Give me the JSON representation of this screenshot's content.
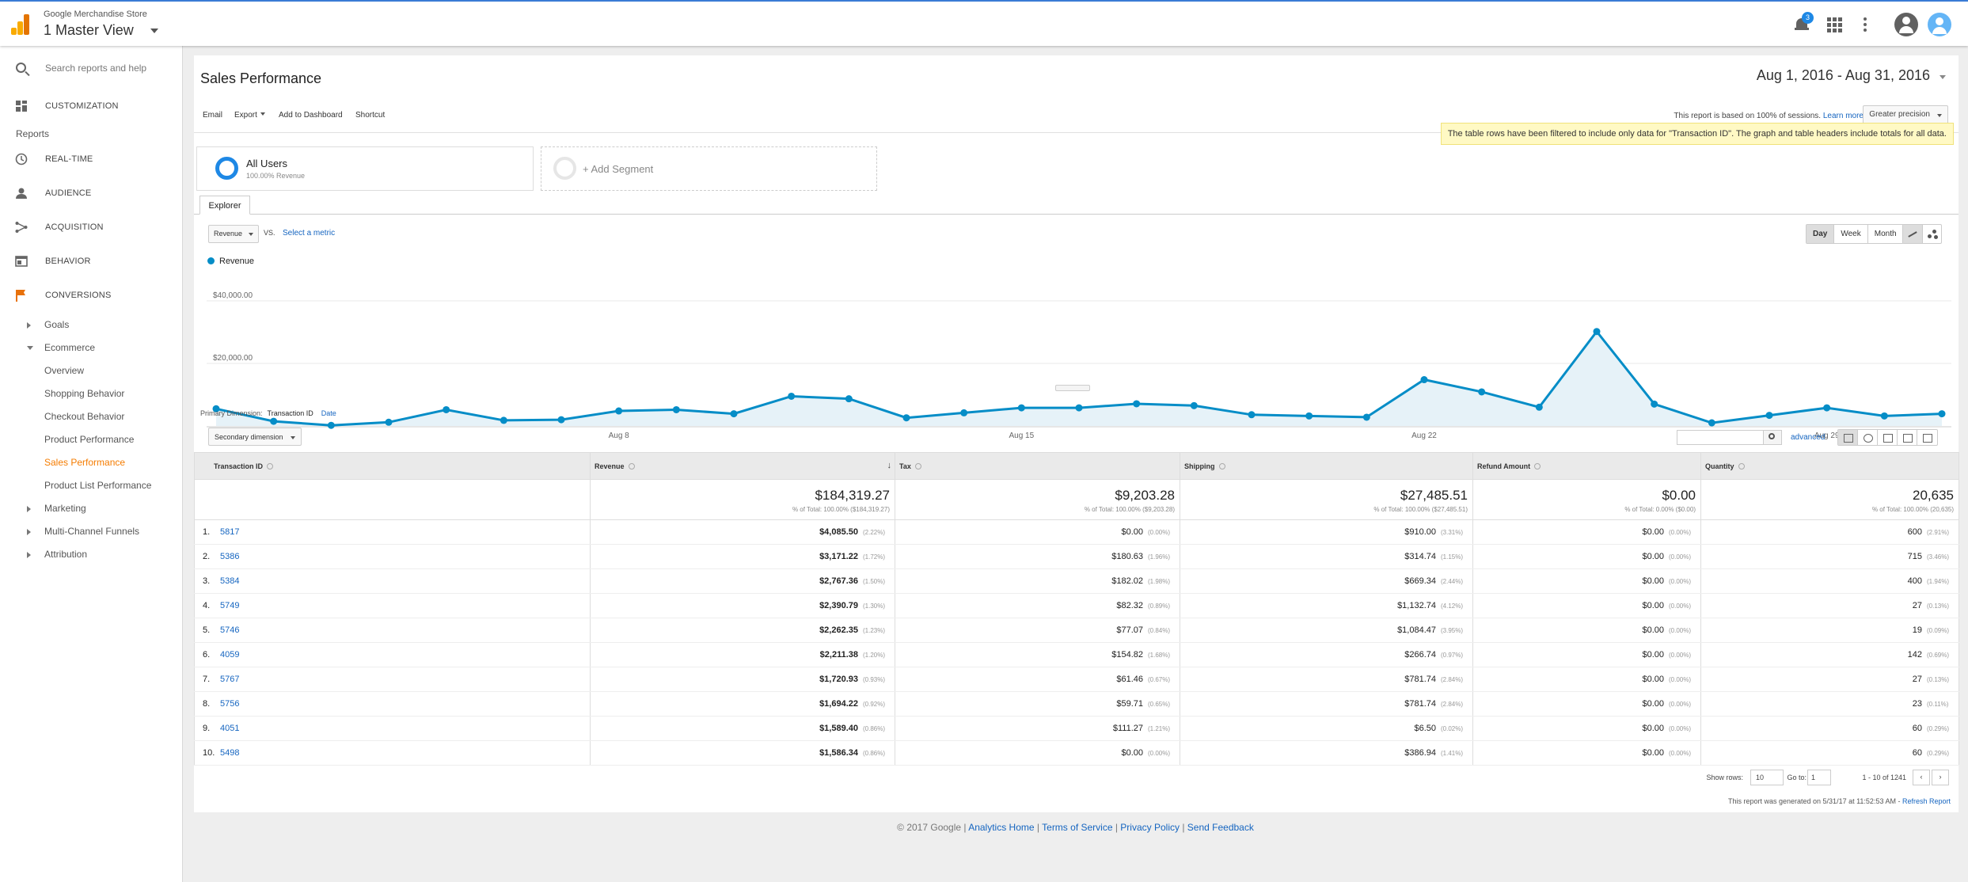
{
  "header": {
    "account": "Google Merchandise Store",
    "view": "1 Master View",
    "notification_count": "3"
  },
  "sidebar": {
    "search_placeholder": "Search reports and help",
    "customization": "CUSTOMIZATION",
    "reports_label": "Reports",
    "top_items": [
      {
        "label": "REAL-TIME",
        "icon": "clock-icon"
      },
      {
        "label": "AUDIENCE",
        "icon": "person-icon"
      },
      {
        "label": "ACQUISITION",
        "icon": "acquisition-icon"
      },
      {
        "label": "BEHAVIOR",
        "icon": "behavior-icon"
      },
      {
        "label": "CONVERSIONS",
        "icon": "flag-icon"
      }
    ],
    "conversions_sub": {
      "goals": "Goals",
      "ecommerce": "Ecommerce",
      "ecommerce_items": [
        "Overview",
        "Shopping Behavior",
        "Checkout Behavior",
        "Product Performance",
        "Sales Performance",
        "Product List Performance"
      ],
      "marketing": "Marketing",
      "mcf": "Multi-Channel Funnels",
      "attribution": "Attribution"
    }
  },
  "report": {
    "title": "Sales Performance",
    "date_range": "Aug 1, 2016 - Aug 31, 2016",
    "toolbar": {
      "email": "Email",
      "export": "Export",
      "add_dashboard": "Add to Dashboard",
      "shortcut": "Shortcut"
    },
    "sampling_text": "This report is based on 100% of sessions.",
    "learn_more": "Learn more",
    "precision": "Greater precision",
    "filter_note": "The table rows have been filtered to include only data for \"Transaction ID\". The graph and table headers include totals for all data.",
    "segment_all": {
      "name": "All Users",
      "sub": "100.00% Revenue"
    },
    "segment_add": "+ Add Segment",
    "explorer_tab": "Explorer",
    "metric": "Revenue",
    "vs": "VS.",
    "select_metric": "Select a metric",
    "range_buttons": [
      "Day",
      "Week",
      "Month"
    ],
    "selected_range": "Day",
    "primary_dim_label": "Primary Dimension:",
    "primary_dim_current": "Transaction ID",
    "primary_dim_alt": "Date",
    "secondary_dim": "Secondary dimension",
    "advanced": "advanced"
  },
  "chart_data": {
    "type": "line",
    "title": "",
    "series": [
      {
        "name": "Revenue",
        "color": "#058dc7",
        "values": [
          5500,
          1500,
          200,
          1200,
          5200,
          1800,
          2000,
          4800,
          5200,
          3900,
          9500,
          8700,
          2600,
          4200,
          5800,
          5800,
          7100,
          6500,
          3600,
          3200,
          2800,
          14800,
          10900,
          6000,
          30200,
          7000,
          1000,
          3400,
          5800,
          3200,
          3900
        ]
      }
    ],
    "x": [
      "Aug 1",
      "Aug 2",
      "Aug 3",
      "Aug 4",
      "Aug 5",
      "Aug 6",
      "Aug 7",
      "Aug 8",
      "Aug 9",
      "Aug 10",
      "Aug 11",
      "Aug 12",
      "Aug 13",
      "Aug 14",
      "Aug 15",
      "Aug 16",
      "Aug 17",
      "Aug 18",
      "Aug 19",
      "Aug 20",
      "Aug 21",
      "Aug 22",
      "Aug 23",
      "Aug 24",
      "Aug 25",
      "Aug 26",
      "Aug 27",
      "Aug 28",
      "Aug 29",
      "Aug 30",
      "Aug 31"
    ],
    "x_tick_labels": [
      "...",
      "Aug 8",
      "Aug 15",
      "Aug 22",
      "Aug 29"
    ],
    "y_tick_labels": [
      "$40,000.00",
      "$20,000.00"
    ],
    "ylim": [
      0,
      40000
    ],
    "grid": true
  },
  "table": {
    "headers": [
      "Transaction ID",
      "Revenue",
      "Tax",
      "Shipping",
      "Refund Amount",
      "Quantity"
    ],
    "totals": [
      {
        "value": "$184,319.27",
        "pct": "% of Total: 100.00% ($184,319.27)"
      },
      {
        "value": "$9,203.28",
        "pct": "% of Total: 100.00% ($9,203.28)"
      },
      {
        "value": "$27,485.51",
        "pct": "% of Total: 100.00% ($27,485.51)"
      },
      {
        "value": "$0.00",
        "pct": "% of Total: 0.00% ($0.00)"
      },
      {
        "value": "20,635",
        "pct": "% of Total: 100.00% (20,635)"
      }
    ],
    "rows": [
      {
        "idx": "1.",
        "id": "5817",
        "revenue": "$4,085.50",
        "revenue_pct": "(2.22%)",
        "tax": "$0.00",
        "tax_pct": "(0.00%)",
        "shipping": "$910.00",
        "shipping_pct": "(3.31%)",
        "refund": "$0.00",
        "refund_pct": "(0.00%)",
        "qty": "600",
        "qty_pct": "(2.91%)"
      },
      {
        "idx": "2.",
        "id": "5386",
        "revenue": "$3,171.22",
        "revenue_pct": "(1.72%)",
        "tax": "$180.63",
        "tax_pct": "(1.96%)",
        "shipping": "$314.74",
        "shipping_pct": "(1.15%)",
        "refund": "$0.00",
        "refund_pct": "(0.00%)",
        "qty": "715",
        "qty_pct": "(3.46%)"
      },
      {
        "idx": "3.",
        "id": "5384",
        "revenue": "$2,767.36",
        "revenue_pct": "(1.50%)",
        "tax": "$182.02",
        "tax_pct": "(1.98%)",
        "shipping": "$669.34",
        "shipping_pct": "(2.44%)",
        "refund": "$0.00",
        "refund_pct": "(0.00%)",
        "qty": "400",
        "qty_pct": "(1.94%)"
      },
      {
        "idx": "4.",
        "id": "5749",
        "revenue": "$2,390.79",
        "revenue_pct": "(1.30%)",
        "tax": "$82.32",
        "tax_pct": "(0.89%)",
        "shipping": "$1,132.74",
        "shipping_pct": "(4.12%)",
        "refund": "$0.00",
        "refund_pct": "(0.00%)",
        "qty": "27",
        "qty_pct": "(0.13%)"
      },
      {
        "idx": "5.",
        "id": "5746",
        "revenue": "$2,262.35",
        "revenue_pct": "(1.23%)",
        "tax": "$77.07",
        "tax_pct": "(0.84%)",
        "shipping": "$1,084.47",
        "shipping_pct": "(3.95%)",
        "refund": "$0.00",
        "refund_pct": "(0.00%)",
        "qty": "19",
        "qty_pct": "(0.09%)"
      },
      {
        "idx": "6.",
        "id": "4059",
        "revenue": "$2,211.38",
        "revenue_pct": "(1.20%)",
        "tax": "$154.82",
        "tax_pct": "(1.68%)",
        "shipping": "$266.74",
        "shipping_pct": "(0.97%)",
        "refund": "$0.00",
        "refund_pct": "(0.00%)",
        "qty": "142",
        "qty_pct": "(0.69%)"
      },
      {
        "idx": "7.",
        "id": "5767",
        "revenue": "$1,720.93",
        "revenue_pct": "(0.93%)",
        "tax": "$61.46",
        "tax_pct": "(0.67%)",
        "shipping": "$781.74",
        "shipping_pct": "(2.84%)",
        "refund": "$0.00",
        "refund_pct": "(0.00%)",
        "qty": "27",
        "qty_pct": "(0.13%)"
      },
      {
        "idx": "8.",
        "id": "5756",
        "revenue": "$1,694.22",
        "revenue_pct": "(0.92%)",
        "tax": "$59.71",
        "tax_pct": "(0.65%)",
        "shipping": "$781.74",
        "shipping_pct": "(2.84%)",
        "refund": "$0.00",
        "refund_pct": "(0.00%)",
        "qty": "23",
        "qty_pct": "(0.11%)"
      },
      {
        "idx": "9.",
        "id": "4051",
        "revenue": "$1,589.40",
        "revenue_pct": "(0.86%)",
        "tax": "$111.27",
        "tax_pct": "(1.21%)",
        "shipping": "$6.50",
        "shipping_pct": "(0.02%)",
        "refund": "$0.00",
        "refund_pct": "(0.00%)",
        "qty": "60",
        "qty_pct": "(0.29%)"
      },
      {
        "idx": "10.",
        "id": "5498",
        "revenue": "$1,586.34",
        "revenue_pct": "(0.86%)",
        "tax": "$0.00",
        "tax_pct": "(0.00%)",
        "shipping": "$386.94",
        "shipping_pct": "(1.41%)",
        "refund": "$0.00",
        "refund_pct": "(0.00%)",
        "qty": "60",
        "qty_pct": "(0.29%)"
      }
    ]
  },
  "pager": {
    "show_rows": "Show rows:",
    "rows_value": "10",
    "go_to": "Go to:",
    "page": "1",
    "range": "1 - 10 of 1241"
  },
  "generated_note": "This report was generated on 5/31/17 at 11:52:53 AM -",
  "refresh": "Refresh Report",
  "footer": {
    "copyright": "© 2017 Google |",
    "links": [
      "Analytics Home",
      "Terms of Service",
      "Privacy Policy",
      "Send Feedback"
    ]
  },
  "colors": {
    "accent": "#f57c00",
    "link": "#1565c0",
    "series": "#058dc7"
  }
}
